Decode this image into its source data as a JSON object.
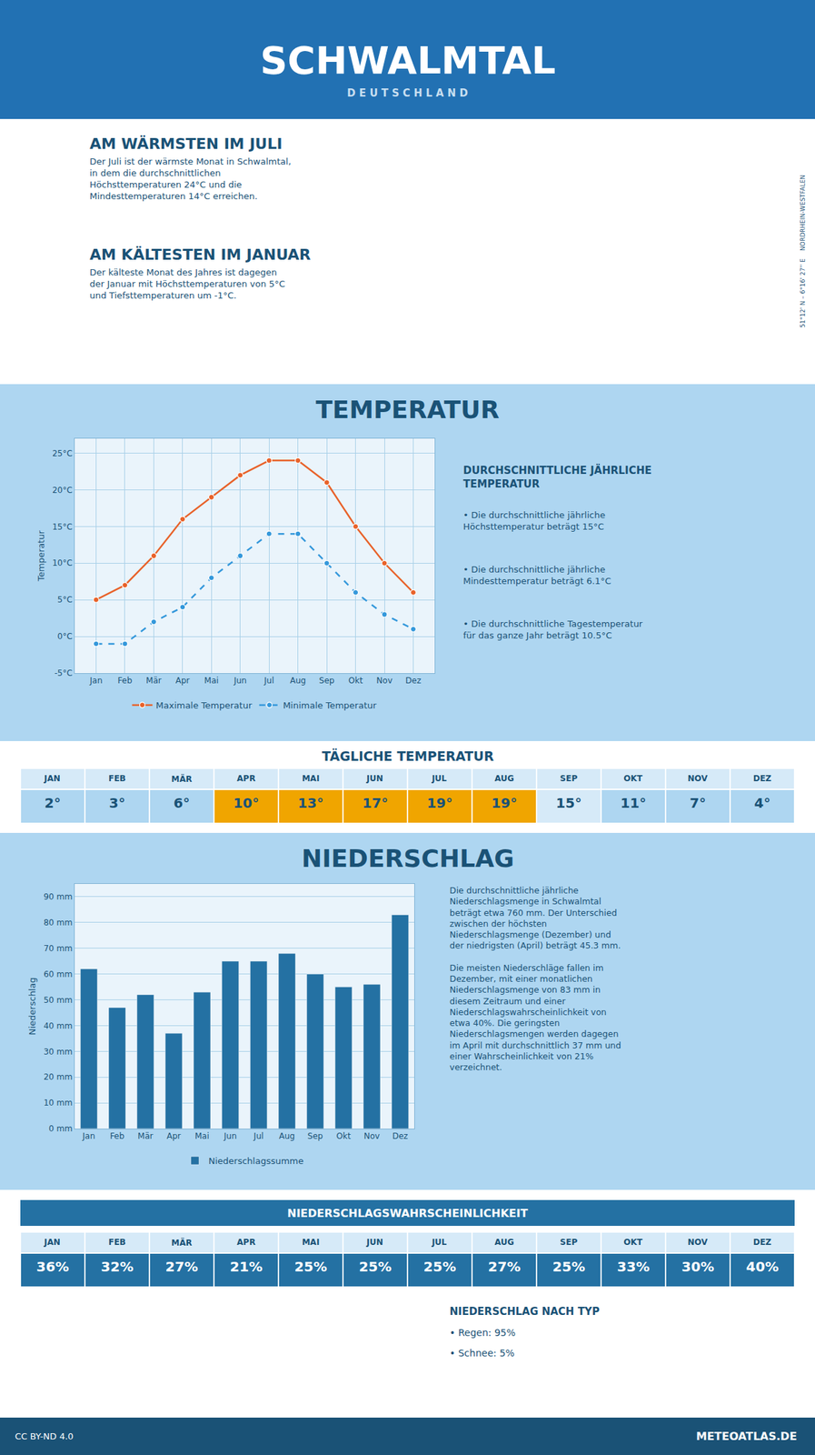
{
  "title": "SCHWALMTAL",
  "subtitle": "D E U T S C H L A N D",
  "annotations": [
    "AM WÄRMSTEN IM JULI",
    "Der Juli ist der wärmste Monat in Schwalmtal,\nin dem die durchschnittlichen\nHöchsttemperaturen 24°C und die\nMindesttemperaturen 14°C erreichen.",
    "AM KÄLTESTEN IM JANUAR",
    "Der kälteste Monat des Jahres ist dagegen\nder Januar mit Höchsttemperaturen von 5°C\nund Tiefsttemperaturen um -1°C.",
    "51°12' N – 6°16' 27'' E    NORDRHEIN-WESTFALEN",
    "NIEDERSCHLAG NACH TYP",
    "• Regen: 95%",
    "• Schnee: 5%",
    "CC BY-ND 4.0",
    "METEOATLAS.DE"
  ],
  "chart_data": [
    {
      "type": "line",
      "title": "TEMPERATUR",
      "categories": [
        "Jan",
        "Feb",
        "Mär",
        "Apr",
        "Mai",
        "Jun",
        "Jul",
        "Aug",
        "Sep",
        "Okt",
        "Nov",
        "Dez"
      ],
      "series": [
        {
          "name": "Maximale Temperatur",
          "color": "#e8622a",
          "marker": "circle",
          "line_style": "solid",
          "values": [
            5,
            7,
            11,
            16,
            19,
            22,
            24,
            24,
            21,
            15,
            10,
            6
          ]
        },
        {
          "name": "Minimale Temperatur",
          "color": "#3498db",
          "marker": "circle",
          "line_style": "dashed",
          "values": [
            -1,
            -1,
            2,
            4,
            8,
            11,
            14,
            14,
            10,
            6,
            3,
            1
          ]
        }
      ],
      "ylabel": "Temperatur",
      "ylim": [
        -5,
        27
      ],
      "yticks": [
        {
          "value": -5,
          "label": "-5°C"
        },
        {
          "value": 0,
          "label": "0°C"
        },
        {
          "value": 5,
          "label": "5°C"
        },
        {
          "value": 10,
          "label": "10°C"
        },
        {
          "value": 15,
          "label": "15°C"
        },
        {
          "value": 20,
          "label": "20°C"
        },
        {
          "value": 25,
          "label": "25°C"
        }
      ],
      "grid": true,
      "legend": "bottom",
      "annotations": [
        "DURCHSCHNITTLICHE JÄHRLICHE\nTEMPERATUR",
        "• Die durchschnittliche jährliche\nHöchsttemperatur beträgt 15°C",
        "• Die durchschnittliche jährliche\nMindesttemperatur beträgt 6.1°C",
        "• Die durchschnittliche Tagestemperatur\nfür das ganze Jahr beträgt 10.5°C"
      ]
    },
    {
      "type": "table",
      "title": "TÄGLICHE TEMPERATUR",
      "categories": [
        "JAN",
        "FEB",
        "MÄR",
        "APR",
        "MAI",
        "JUN",
        "JUL",
        "AUG",
        "SEP",
        "OKT",
        "NOV",
        "DEZ"
      ],
      "values": [
        2,
        3,
        6,
        10,
        13,
        17,
        19,
        19,
        15,
        11,
        7,
        4
      ],
      "value_labels": [
        "2°",
        "3°",
        "6°",
        "10°",
        "13°",
        "17°",
        "19°",
        "19°",
        "15°",
        "11°",
        "7°",
        "4°"
      ],
      "colors": [
        "#aed6f1",
        "#aed6f1",
        "#aed6f1",
        "#f0a500",
        "#f0a500",
        "#f0a500",
        "#f0a500",
        "#f0a500",
        "#d6eaf8",
        "#aed6f1",
        "#aed6f1",
        "#aed6f1"
      ]
    },
    {
      "type": "bar",
      "title": "NIEDERSCHLAG",
      "categories": [
        "Jan",
        "Feb",
        "Mär",
        "Apr",
        "Mai",
        "Jun",
        "Jul",
        "Aug",
        "Sep",
        "Okt",
        "Nov",
        "Dez"
      ],
      "series": [
        {
          "name": "Niederschlagssumme",
          "color": "#2471a3",
          "values": [
            62,
            47,
            52,
            37,
            53,
            65,
            65,
            68,
            60,
            55,
            56,
            83
          ]
        }
      ],
      "ylabel": "Niederschlag",
      "ylim": [
        0,
        95
      ],
      "yticks": [
        {
          "value": 0,
          "label": "0 mm"
        },
        {
          "value": 10,
          "label": "10 mm"
        },
        {
          "value": 20,
          "label": "20 mm"
        },
        {
          "value": 30,
          "label": "30 mm"
        },
        {
          "value": 40,
          "label": "40 mm"
        },
        {
          "value": 50,
          "label": "50 mm"
        },
        {
          "value": 60,
          "label": "60 mm"
        },
        {
          "value": 70,
          "label": "70 mm"
        },
        {
          "value": 80,
          "label": "80 mm"
        },
        {
          "value": 90,
          "label": "90 mm"
        }
      ],
      "grid": "y",
      "legend": "bottom",
      "annotations": [
        "Die durchschnittliche jährliche\nNiederschlagsmenge in Schwalmtal\nbeträgt etwa 760 mm. Der Unterschied\nzwischen der höchsten\nNiederschlagsmenge (Dezember) und\nder niedrigsten (April) beträgt 45.3 mm.\n\nDie meisten Niederschläge fallen im\nDezember, mit einer monatlichen\nNiederschlagsmenge von 83 mm in\ndiesem Zeitraum und einer\nNiederschlagswahrscheinlichkeit von\netwa 40%. Die geringsten\nNiederschlagsmengen werden dagegen\nim April mit durchschnittlich 37 mm und\neiner Wahrscheinlichkeit von 21%\nverzeichnet."
      ]
    },
    {
      "type": "table",
      "title": "NIEDERSCHLAGSWAHRSCHEINLICHKEIT",
      "categories": [
        "JAN",
        "FEB",
        "MÄR",
        "APR",
        "MAI",
        "JUN",
        "JUL",
        "AUG",
        "SEP",
        "OKT",
        "NOV",
        "DEZ"
      ],
      "values": [
        36,
        32,
        27,
        21,
        25,
        25,
        25,
        27,
        25,
        33,
        30,
        40
      ],
      "value_labels": [
        "36%",
        "32%",
        "27%",
        "21%",
        "25%",
        "25%",
        "25%",
        "27%",
        "25%",
        "33%",
        "30%",
        "40%"
      ],
      "color": "#2471a3"
    }
  ]
}
